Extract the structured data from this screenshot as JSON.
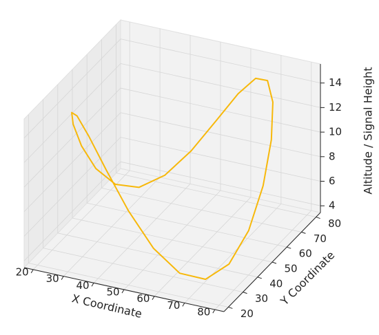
{
  "chart_data": {
    "type": "line3d",
    "xlabel": "X Coordinate",
    "ylabel": "Y Coordinate",
    "zlabel": "Altitude / Signal Height",
    "xlim": [
      17,
      83
    ],
    "ylim": [
      17,
      83
    ],
    "zlim": [
      3.45,
      15.55
    ],
    "xticks": [
      20,
      30,
      40,
      50,
      60,
      70,
      80
    ],
    "yticks": [
      20,
      30,
      40,
      50,
      60,
      70,
      80
    ],
    "zticks": [
      4,
      6,
      8,
      10,
      12,
      14
    ],
    "grid": true,
    "series": [
      {
        "color": "#f7b80a",
        "x": [
          80,
          78.98,
          75.98,
          71.21,
          65,
          57.76,
          50,
          42.24,
          35,
          28.79,
          24.02,
          21.02,
          20,
          21.02,
          24.02,
          28.79,
          35,
          42.24,
          50,
          57.76,
          65,
          71.21,
          75.98,
          78.98,
          80
        ],
        "y": [
          50,
          57.76,
          65,
          71.21,
          75.98,
          78.98,
          80,
          78.98,
          75.98,
          71.21,
          65,
          57.76,
          50,
          42.24,
          35,
          28.79,
          24.02,
          21.02,
          20,
          21.02,
          24.02,
          28.79,
          35,
          42.24,
          50
        ],
        "z": [
          9.5,
          12.25,
          14.26,
          15,
          14.26,
          12.25,
          9.5,
          6.75,
          4.74,
          4,
          4.74,
          6.75,
          9.5,
          12.25,
          14.26,
          15,
          14.26,
          12.25,
          9.5,
          6.75,
          4.74,
          4,
          4.74,
          6.75,
          9.5
        ]
      }
    ]
  }
}
